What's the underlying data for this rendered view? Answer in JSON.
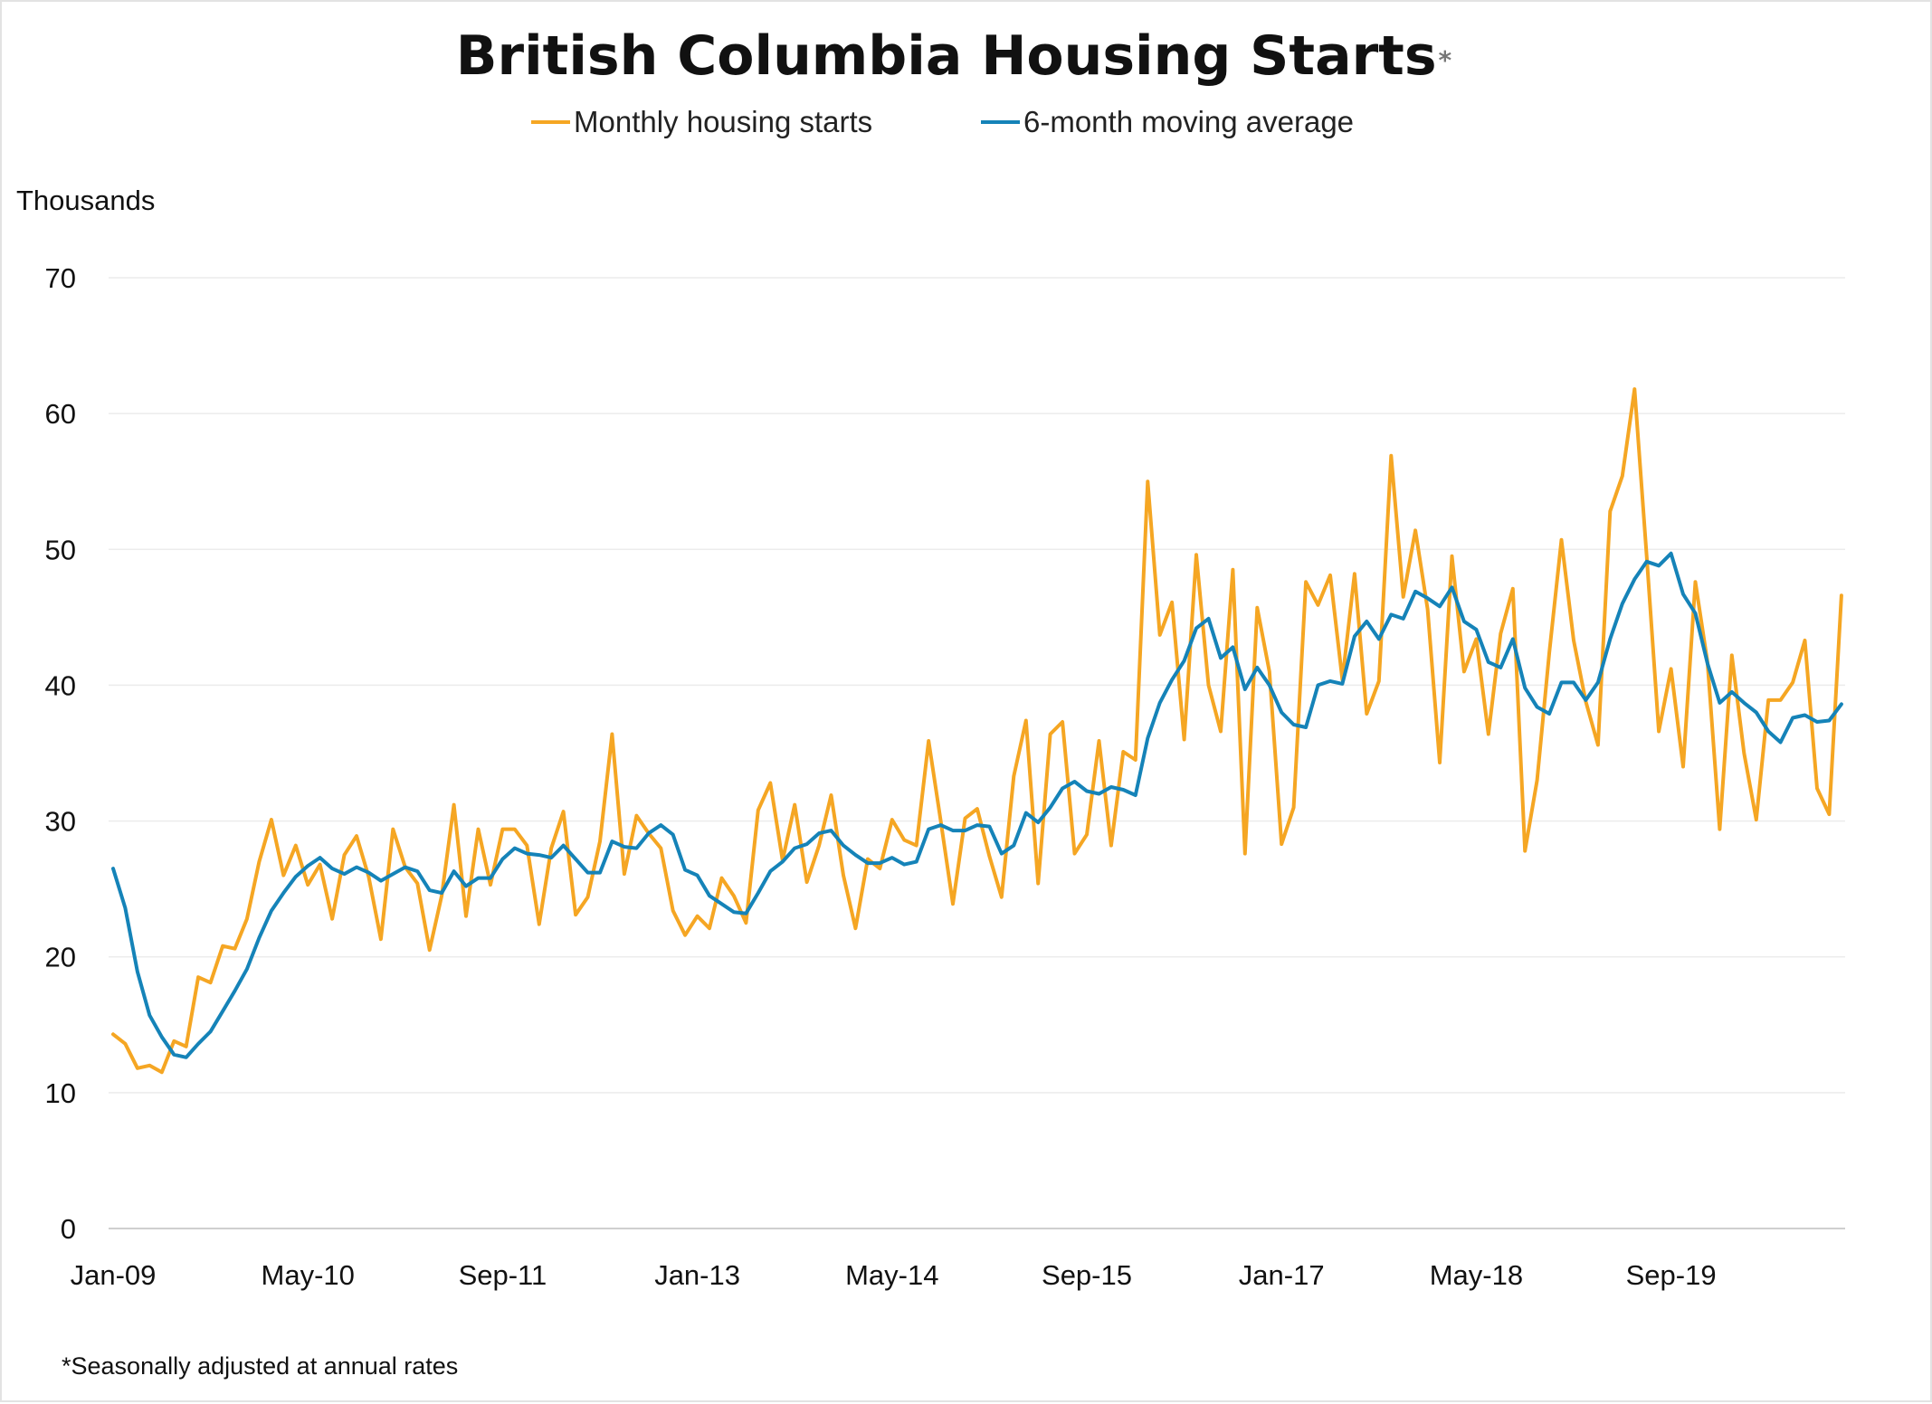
{
  "chart_data": {
    "type": "line",
    "title": "British Columbia Housing Starts",
    "title_mark": "*",
    "ylabel": "Thousands",
    "footnote": "*Seasonally adjusted at annual rates",
    "ylim": [
      0,
      70
    ],
    "y_ticks": [
      "0",
      "10",
      "20",
      "30",
      "40",
      "50",
      "60",
      "70"
    ],
    "x_start": "Jan-09",
    "x_tick_labels": [
      "Jan-09",
      "May-10",
      "Sep-11",
      "Jan-13",
      "May-14",
      "Sep-15",
      "Jan-17",
      "May-18",
      "Sep-19"
    ],
    "grid": true,
    "legend_position": "top-center",
    "series": [
      {
        "name": "Monthly housing starts",
        "color": "#F5A623",
        "values": [
          14.3,
          13.6,
          11.8,
          12.0,
          11.5,
          13.8,
          13.4,
          18.5,
          18.1,
          20.8,
          20.6,
          22.8,
          27.0,
          30.1,
          26.0,
          28.2,
          25.3,
          26.8,
          22.8,
          27.5,
          28.9,
          25.9,
          21.3,
          29.4,
          26.6,
          25.4,
          20.5,
          24.5,
          31.2,
          23.0,
          29.4,
          25.3,
          29.4,
          29.4,
          28.2,
          22.4,
          28.0,
          30.7,
          23.1,
          24.4,
          28.5,
          36.4,
          26.1,
          30.4,
          29.1,
          28.0,
          23.4,
          21.6,
          23.0,
          22.1,
          25.8,
          24.5,
          22.5,
          30.8,
          32.8,
          27.1,
          31.2,
          25.5,
          28.2,
          31.9,
          26.0,
          22.1,
          27.2,
          26.5,
          30.1,
          28.6,
          28.2,
          35.9,
          30.0,
          23.9,
          30.2,
          30.9,
          27.4,
          24.4,
          33.3,
          37.4,
          25.4,
          36.4,
          37.3,
          27.6,
          29.0,
          35.9,
          28.2,
          35.1,
          34.5,
          55.0,
          43.7,
          46.1,
          36.0,
          49.6,
          40.0,
          36.6,
          48.5,
          27.6,
          45.7,
          41.0,
          28.3,
          31.0,
          47.6,
          45.9,
          48.1,
          40.4,
          48.2,
          37.9,
          40.3,
          56.9,
          46.5,
          51.4,
          45.6,
          34.3,
          49.5,
          41.0,
          43.4,
          36.4,
          43.8,
          47.1,
          27.8,
          33.0,
          42.4,
          50.7,
          43.3,
          38.8,
          35.6,
          52.8,
          55.4,
          61.8,
          49.5,
          36.6,
          41.2,
          34.0,
          47.6,
          41.7,
          29.4,
          42.2,
          35.0,
          30.1,
          38.9,
          38.9,
          40.2,
          43.3,
          32.4,
          30.5,
          46.6
        ]
      },
      {
        "name": "6-month moving average",
        "color": "#1583B8",
        "values": [
          26.5,
          23.6,
          18.9,
          15.7,
          14.1,
          12.8,
          12.6,
          13.6,
          14.5,
          16.0,
          17.5,
          19.1,
          21.4,
          23.4,
          24.7,
          25.9,
          26.7,
          27.3,
          26.5,
          26.1,
          26.6,
          26.2,
          25.6,
          26.1,
          26.6,
          26.3,
          24.9,
          24.7,
          26.3,
          25.2,
          25.8,
          25.8,
          27.2,
          28.0,
          27.6,
          27.5,
          27.3,
          28.2,
          27.2,
          26.2,
          26.2,
          28.5,
          28.1,
          28.0,
          29.1,
          29.7,
          29.0,
          26.4,
          26.0,
          24.5,
          23.9,
          23.3,
          23.2,
          24.7,
          26.3,
          27.0,
          28.0,
          28.3,
          29.1,
          29.3,
          28.2,
          27.5,
          26.9,
          26.9,
          27.3,
          26.8,
          27.0,
          29.4,
          29.7,
          29.3,
          29.3,
          29.7,
          29.6,
          27.6,
          28.2,
          30.6,
          29.9,
          31.0,
          32.4,
          32.9,
          32.2,
          32.0,
          32.5,
          32.3,
          31.9,
          36.1,
          38.7,
          40.4,
          41.8,
          44.2,
          44.9,
          42.0,
          42.8,
          39.7,
          41.3,
          40.0,
          38.0,
          37.1,
          36.9,
          40.0,
          40.3,
          40.1,
          43.6,
          44.7,
          43.4,
          45.2,
          44.9,
          46.9,
          46.4,
          45.8,
          47.2,
          44.7,
          44.1,
          41.7,
          41.3,
          43.4,
          39.8,
          38.4,
          37.9,
          40.2,
          40.2,
          38.9,
          40.2,
          43.4,
          46.0,
          47.8,
          49.1,
          48.8,
          49.7,
          46.7,
          45.3,
          41.6,
          38.7,
          39.5,
          38.7,
          38.0,
          36.6,
          35.8,
          37.6,
          37.8,
          37.3,
          37.4,
          38.6
        ]
      }
    ]
  }
}
